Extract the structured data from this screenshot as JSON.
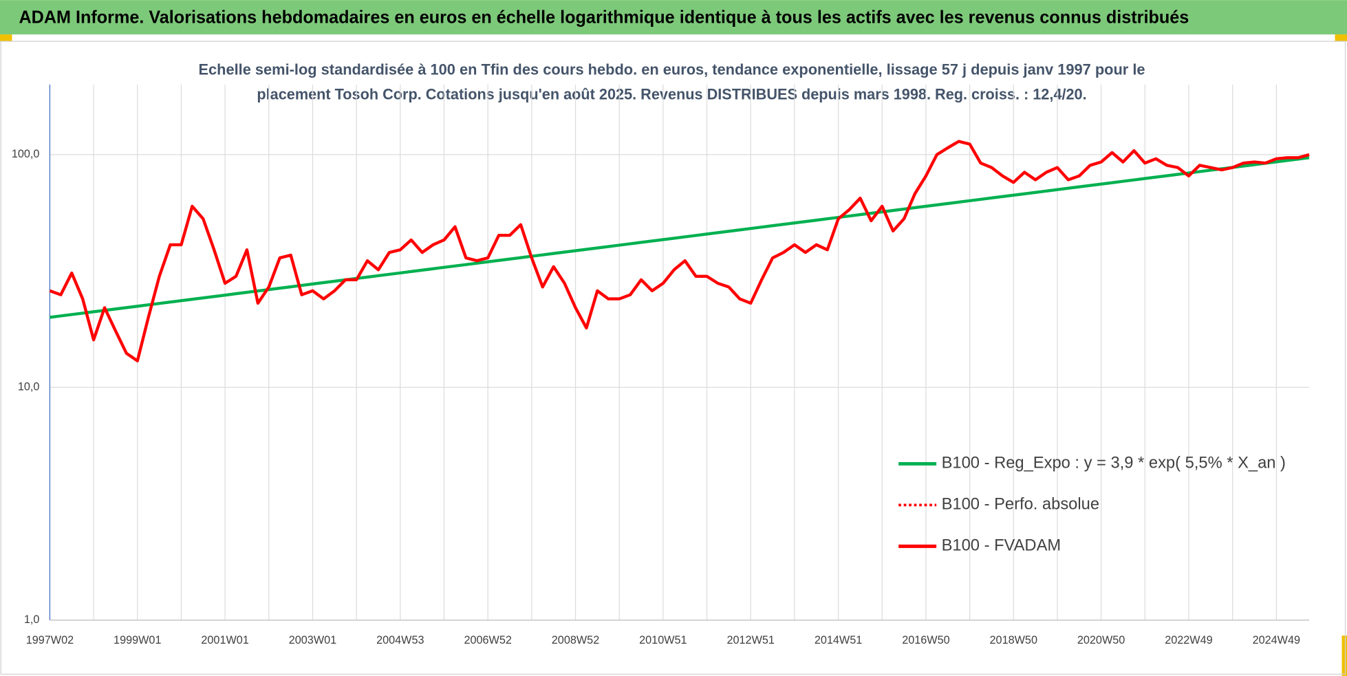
{
  "chart_data": {
    "type": "line",
    "title": "ADAM Informe. Valorisations hebdomadaires en euros en échelle logarithmique identique à tous les actifs avec les revenus connus distribués",
    "subtitle": [
      "Echelle semi-log standardisée à 100 en Tfin des cours hebdo. en euros, tendance exponentielle, lissage 57 j depuis janv 1997 pour le",
      "placement Tosoh Corp. Cotations jusqu'en août 2025. Revenus DISTRIBUES depuis mars 1998. Reg. croiss. : 12,4/20."
    ],
    "log_scale": true,
    "grid": true,
    "legend": "lower right",
    "ylim": [
      1,
      200
    ],
    "yticks": [
      {
        "value": 1,
        "label": "1,0"
      },
      {
        "value": 10,
        "label": "10,0"
      },
      {
        "value": 100,
        "label": "100,0"
      }
    ],
    "categories": [
      "1997W02",
      null,
      null,
      null,
      null,
      null,
      null,
      null,
      "1999W01",
      null,
      null,
      null,
      null,
      null,
      null,
      null,
      "2001W01",
      null,
      null,
      null,
      null,
      null,
      null,
      null,
      "2003W01",
      null,
      null,
      null,
      null,
      null,
      null,
      null,
      "2004W53",
      null,
      null,
      null,
      null,
      null,
      null,
      null,
      "2006W52",
      null,
      null,
      null,
      null,
      null,
      null,
      null,
      "2008W52",
      null,
      null,
      null,
      null,
      null,
      null,
      null,
      "2010W51",
      null,
      null,
      null,
      null,
      null,
      null,
      null,
      "2012W51",
      null,
      null,
      null,
      null,
      null,
      null,
      null,
      "2014W51",
      null,
      null,
      null,
      null,
      null,
      null,
      null,
      "2016W50",
      null,
      null,
      null,
      null,
      null,
      null,
      null,
      "2018W50",
      null,
      null,
      null,
      null,
      null,
      null,
      null,
      "2020W50",
      null,
      null,
      null,
      null,
      null,
      null,
      null,
      "2022W49",
      null,
      null,
      null,
      null,
      null,
      null,
      null,
      "2024W49",
      null,
      null,
      null
    ],
    "series": [
      {
        "name": "B100 - Reg_Expo : y = 3,9 * exp( 5,5% *  X_an )",
        "color": "#00b050",
        "style": "solid",
        "values": [
          20.0,
          20.28,
          20.56,
          20.84,
          21.13,
          21.42,
          21.72,
          22.02,
          22.32,
          22.63,
          22.94,
          23.26,
          23.58,
          23.91,
          24.24,
          24.57,
          24.91,
          25.26,
          25.61,
          25.96,
          26.32,
          26.68,
          27.05,
          27.43,
          27.81,
          28.19,
          28.58,
          28.98,
          29.38,
          29.78,
          30.19,
          30.61,
          31.03,
          31.46,
          31.9,
          32.34,
          32.79,
          33.24,
          33.7,
          34.16,
          34.64,
          35.11,
          35.6,
          36.09,
          36.59,
          37.1,
          37.61,
          38.13,
          38.66,
          39.19,
          39.73,
          40.28,
          40.84,
          41.4,
          41.98,
          42.56,
          43.14,
          43.74,
          44.35,
          44.96,
          45.58,
          46.21,
          46.85,
          47.5,
          48.16,
          48.82,
          49.5,
          50.18,
          50.88,
          51.58,
          52.29,
          53.02,
          53.75,
          54.49,
          55.25,
          56.01,
          56.79,
          57.57,
          58.37,
          59.18,
          60.0,
          60.83,
          61.67,
          62.52,
          63.38,
          64.26,
          65.15,
          66.05,
          66.96,
          67.89,
          68.83,
          69.78,
          70.74,
          71.72,
          72.71,
          73.72,
          74.74,
          75.77,
          76.82,
          77.88,
          78.96,
          80.05,
          81.16,
          82.28,
          83.42,
          84.57,
          85.74,
          86.93,
          88.13,
          89.35,
          90.58,
          91.84,
          93.11,
          94.39,
          95.7,
          97.02
        ]
      },
      {
        "name": "B100 - Perfo. absolue",
        "color": "#ff0000",
        "style": "dotted",
        "values": [
          26,
          25,
          31,
          24,
          16,
          22,
          17.5,
          14,
          13,
          20,
          30,
          41,
          41,
          60,
          53,
          39,
          28,
          30,
          39,
          23,
          27,
          36,
          37,
          25,
          26,
          24,
          26,
          29,
          29,
          35,
          32,
          38,
          39,
          43,
          38,
          41,
          43,
          49,
          36,
          35,
          36,
          45,
          45,
          50,
          36,
          27,
          33,
          28,
          22,
          18,
          26,
          24,
          24,
          25,
          29,
          26,
          28,
          32,
          35,
          30,
          30,
          28,
          27,
          24,
          23,
          29,
          36,
          38,
          41,
          38,
          41,
          39,
          53,
          58,
          65,
          52,
          60,
          47,
          53,
          68,
          81,
          100,
          107,
          114,
          111,
          92,
          88,
          81,
          76,
          84,
          78,
          84,
          88,
          78,
          81,
          90,
          93,
          102,
          93,
          104,
          92,
          96,
          90,
          88,
          81,
          90,
          88,
          86,
          88,
          92,
          93,
          92,
          96,
          97,
          97,
          100
        ]
      },
      {
        "name": "B100 - FVADAM",
        "color": "#ff0000",
        "style": "solid",
        "values": [
          26,
          25,
          31,
          24,
          16,
          22,
          17.5,
          14,
          13,
          20,
          30,
          41,
          41,
          60,
          53,
          39,
          28,
          30,
          39,
          23,
          27,
          36,
          37,
          25,
          26,
          24,
          26,
          29,
          29,
          35,
          32,
          38,
          39,
          43,
          38,
          41,
          43,
          49,
          36,
          35,
          36,
          45,
          45,
          50,
          36,
          27,
          33,
          28,
          22,
          18,
          26,
          24,
          24,
          25,
          29,
          26,
          28,
          32,
          35,
          30,
          30,
          28,
          27,
          24,
          23,
          29,
          36,
          38,
          41,
          38,
          41,
          39,
          53,
          58,
          65,
          52,
          60,
          47,
          53,
          68,
          81,
          100,
          107,
          114,
          111,
          92,
          88,
          81,
          76,
          84,
          78,
          84,
          88,
          78,
          81,
          90,
          93,
          102,
          93,
          104,
          92,
          96,
          90,
          88,
          81,
          90,
          88,
          86,
          88,
          92,
          93,
          92,
          96,
          97,
          97,
          100
        ]
      }
    ]
  }
}
